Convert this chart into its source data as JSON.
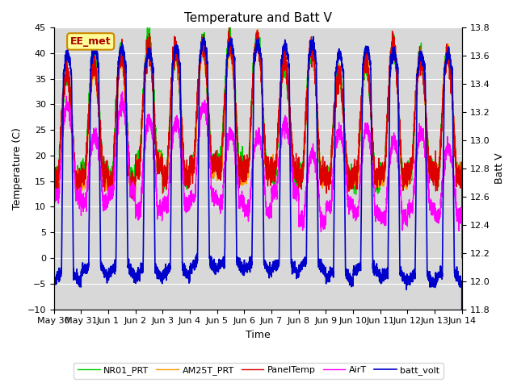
{
  "title": "Temperature and Batt V",
  "xlabel": "Time",
  "ylabel_left": "Temperature (C)",
  "ylabel_right": "Batt V",
  "ylim_left": [
    -10,
    45
  ],
  "ylim_right": [
    11.8,
    13.8
  ],
  "yticks_left": [
    -10,
    -5,
    0,
    5,
    10,
    15,
    20,
    25,
    30,
    35,
    40,
    45
  ],
  "yticks_right": [
    11.8,
    12.0,
    12.2,
    12.4,
    12.6,
    12.8,
    13.0,
    13.2,
    13.4,
    13.6,
    13.8
  ],
  "xtick_labels": [
    "May 30",
    "May 31",
    "Jun 1",
    "Jun 2",
    "Jun 3",
    "Jun 4",
    "Jun 5",
    "Jun 6",
    "Jun 7",
    "Jun 8",
    "Jun 9",
    "Jun 10",
    "Jun 11",
    "Jun 12",
    "Jun 13",
    "Jun 14"
  ],
  "legend_labels": [
    "PanelTemp",
    "AirT",
    "NR01_PRT",
    "AM25T_PRT",
    "batt_volt"
  ],
  "line_colors": [
    "#dd0000",
    "#ff00ff",
    "#00cc00",
    "#ff9900",
    "#0000cc"
  ],
  "line_widths": [
    1.0,
    1.0,
    1.0,
    1.0,
    1.2
  ],
  "annotation_text": "EE_met",
  "plot_bg_color": "#d8d8d8",
  "title_fontsize": 11,
  "axis_fontsize": 9,
  "tick_fontsize": 8
}
